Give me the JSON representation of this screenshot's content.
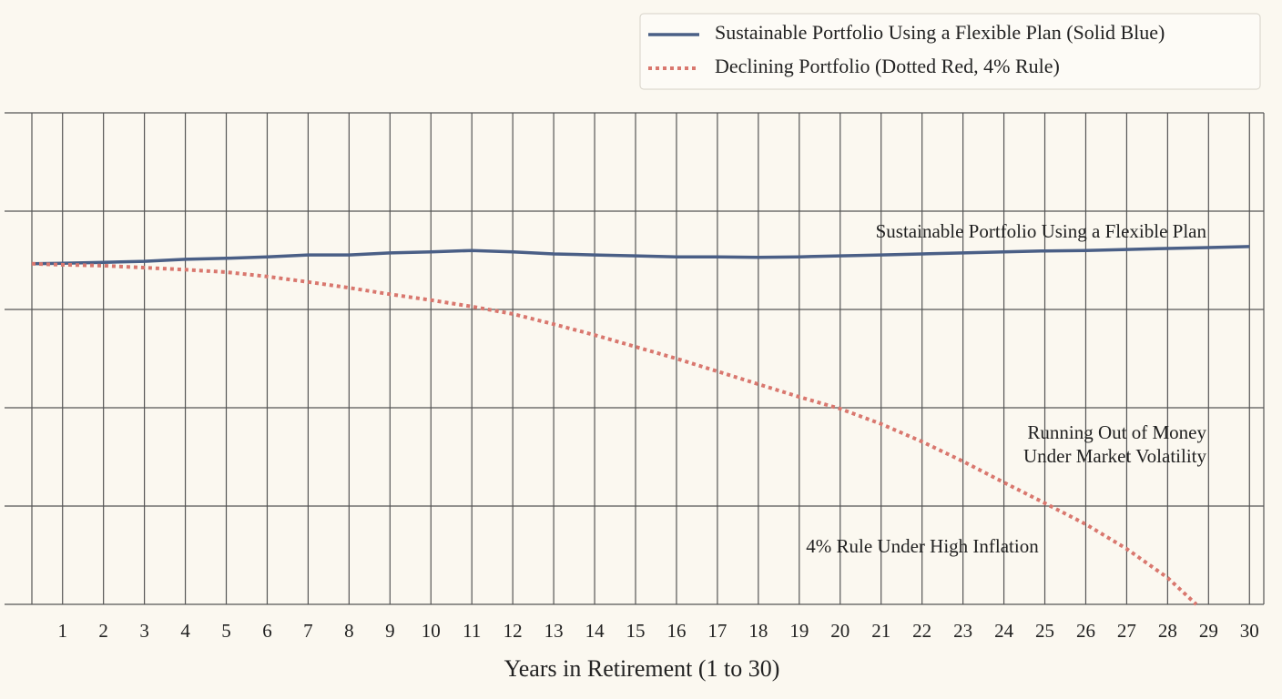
{
  "chart_data": {
    "type": "line",
    "x_label": "Years in Retirement (1 to 30)",
    "x": [
      0.25,
      1,
      2,
      3,
      4,
      5,
      6,
      7,
      8,
      9,
      10,
      11,
      12,
      13,
      14,
      15,
      16,
      17,
      18,
      19,
      20,
      21,
      22,
      23,
      24,
      25,
      26,
      27,
      28,
      29,
      30
    ],
    "series": [
      {
        "name": "Sustainable Portfolio Using a Flexible Plan (Solid Blue)",
        "color": "#4a5f86",
        "style": "solid",
        "values": [
          69.3,
          69.4,
          69.6,
          69.8,
          70.2,
          70.4,
          70.7,
          71.1,
          71.1,
          71.5,
          71.7,
          72.0,
          71.7,
          71.3,
          71.1,
          70.9,
          70.7,
          70.7,
          70.6,
          70.7,
          70.9,
          71.1,
          71.3,
          71.5,
          71.7,
          71.9,
          72.0,
          72.2,
          72.4,
          72.6,
          72.8
        ]
      },
      {
        "name": "Declining Portfolio (Dotted Red, 4% Rule)",
        "color": "#d9776e",
        "style": "dotted",
        "x": [
          0.25,
          1,
          2,
          3,
          4,
          5,
          6,
          7,
          8,
          9,
          10,
          11,
          12,
          13,
          14,
          15,
          16,
          17,
          18,
          19,
          20,
          21,
          22,
          23,
          24,
          25,
          26,
          27,
          28,
          28.7
        ],
        "values": [
          69.3,
          69.1,
          68.9,
          68.5,
          68.1,
          67.6,
          66.7,
          65.6,
          64.4,
          63.1,
          61.9,
          60.6,
          59.1,
          57.0,
          54.8,
          52.4,
          50.0,
          47.4,
          44.8,
          42.2,
          39.8,
          36.7,
          33.1,
          29.1,
          24.8,
          20.6,
          16.3,
          11.3,
          5.4,
          0
        ]
      }
    ],
    "xlim": [
      0.25,
      30.35
    ],
    "xticks": [
      1,
      2,
      3,
      4,
      5,
      6,
      7,
      8,
      9,
      10,
      11,
      12,
      13,
      14,
      15,
      16,
      17,
      18,
      19,
      20,
      21,
      22,
      23,
      24,
      25,
      26,
      27,
      28,
      29,
      30
    ],
    "ylim": [
      0,
      100
    ],
    "y_grid_lines": [
      0,
      20,
      40,
      60,
      80,
      100
    ],
    "grid": true,
    "legend": "top-right",
    "annotations": [
      {
        "text": "Sustainable Portfolio Using a Flexible Plan"
      },
      {
        "text": "Running Out of Money"
      },
      {
        "text": "Under Market Volatility"
      },
      {
        "text": "4% Rule Under High Inflation"
      }
    ]
  }
}
